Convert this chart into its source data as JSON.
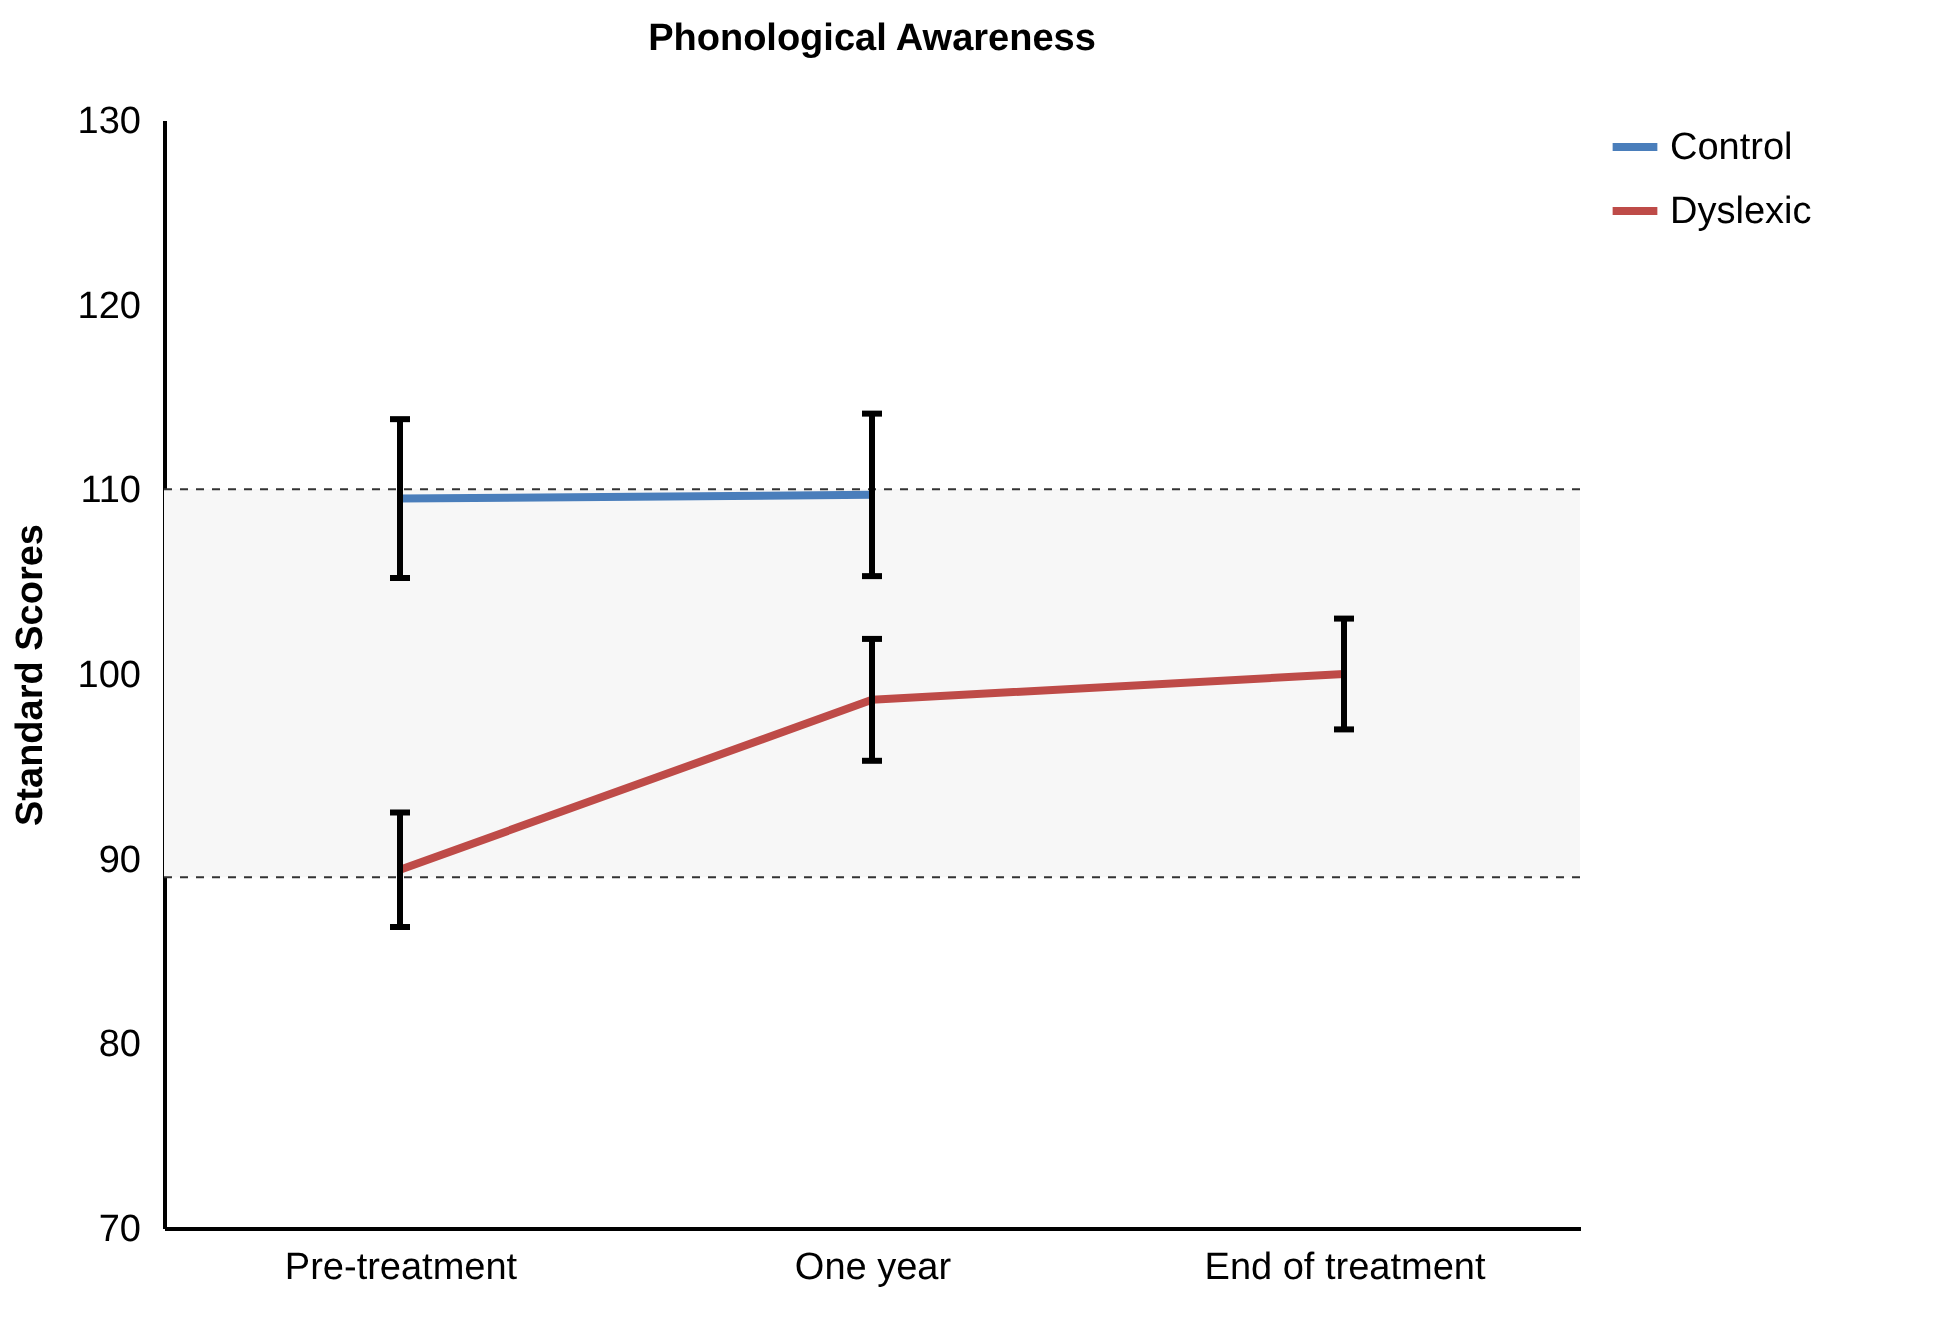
{
  "chart_data": {
    "type": "line",
    "title": "Phonological Awareness",
    "ylabel": "Standard Scores",
    "categories": [
      "Pre-treatment",
      "One year",
      "End of treatment"
    ],
    "series": [
      {
        "name": "Control",
        "color": "#4a7ebb",
        "values": [
          109.5,
          109.7,
          null
        ],
        "errors": [
          4.3,
          4.4,
          null
        ]
      },
      {
        "name": "Dyslexic",
        "color": "#be4b48",
        "values": [
          89.4,
          98.6,
          100.0
        ],
        "errors": [
          3.1,
          3.3,
          3.0
        ]
      }
    ],
    "ylim": [
      70,
      130
    ],
    "yticks": [
      70,
      80,
      90,
      100,
      110,
      120,
      130
    ],
    "bands": [
      {
        "axis": "y",
        "from": 89,
        "to": 110,
        "color": "#f7f7f7"
      }
    ],
    "ref_lines": [
      {
        "axis": "y",
        "value": 110,
        "line_style": "dashed"
      },
      {
        "axis": "y",
        "value": 89,
        "line_style": "dashed"
      }
    ],
    "grid": false,
    "legend": "right",
    "marker": "none",
    "line_style": "solid"
  }
}
